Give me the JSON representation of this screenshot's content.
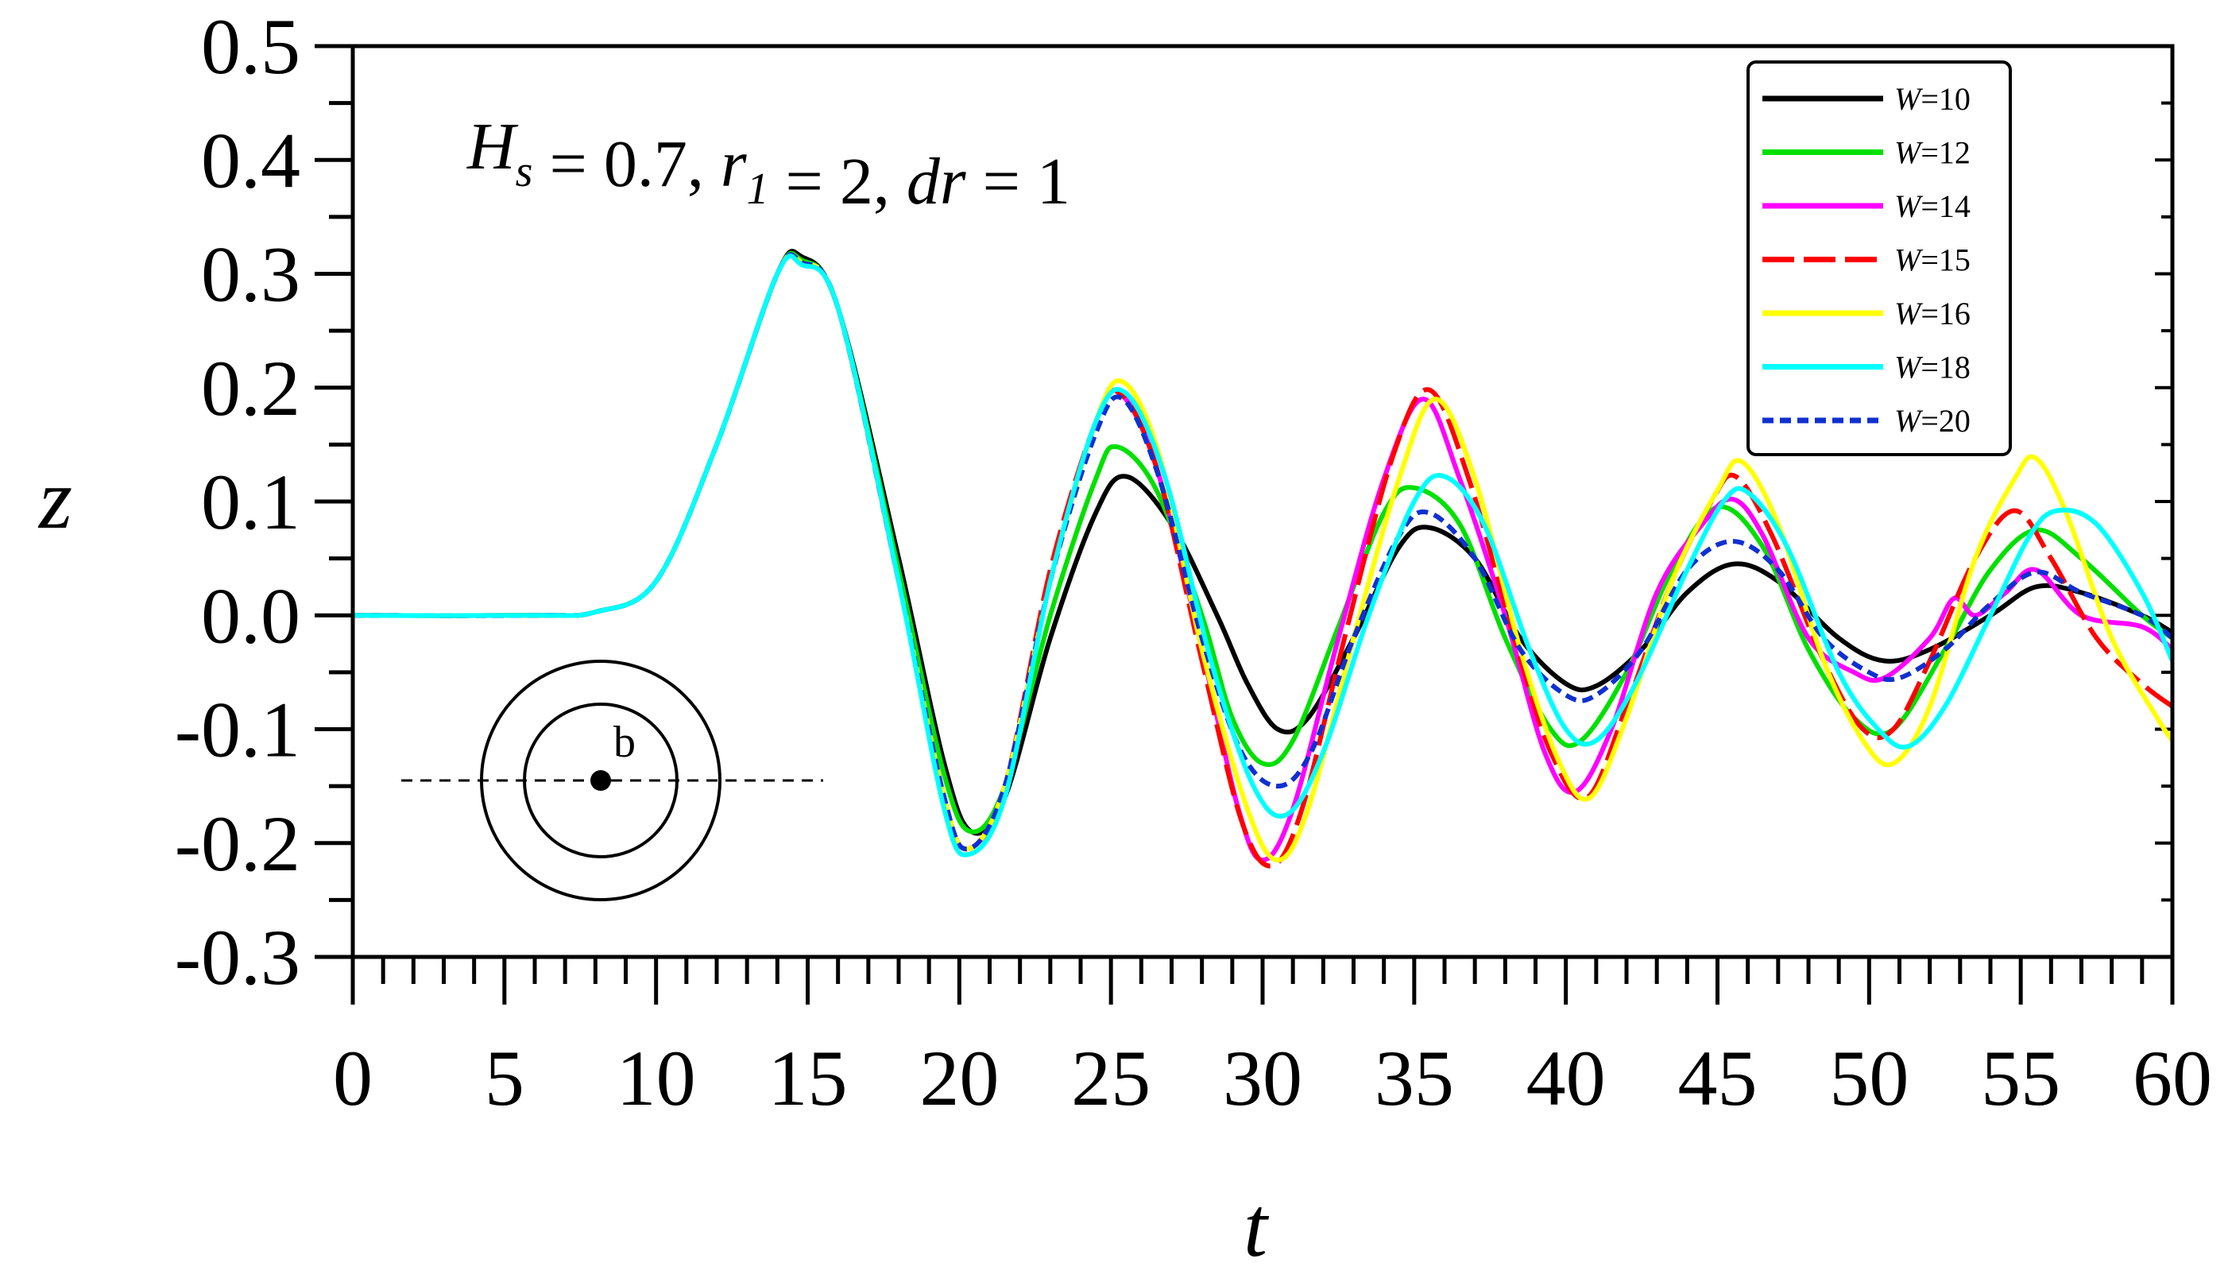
{
  "chart_data": {
    "type": "line",
    "xlabel": "t",
    "ylabel": "z",
    "xlim": [
      0,
      60
    ],
    "ylim": [
      -0.3,
      0.5
    ],
    "xticks": [
      "0",
      "5",
      "10",
      "15",
      "20",
      "25",
      "30",
      "35",
      "40",
      "45",
      "50",
      "55",
      "60"
    ],
    "yticks": [
      "-0.3",
      "-0.2",
      "-0.1",
      "0.0",
      "0.1",
      "0.2",
      "0.3",
      "0.4",
      "0.5"
    ],
    "grid": false,
    "legend_position": "top-right",
    "annotation": {
      "parts": [
        {
          "text": "H",
          "italic": true
        },
        {
          "text": "s",
          "italic": true,
          "sub": true
        },
        {
          "text": " = 0.7, ",
          "italic": false
        },
        {
          "text": "r",
          "italic": true
        },
        {
          "text": "1",
          "italic": true,
          "sub": true
        },
        {
          "text": " = 2, ",
          "italic": false
        },
        {
          "text": "dr",
          "italic": true
        },
        {
          "text": " = 1",
          "italic": false
        }
      ]
    },
    "inset": {
      "label": "b"
    },
    "series": [
      {
        "name": "W=10",
        "legend_italic": "W",
        "legend_rest": "=10",
        "color": "#000000",
        "dash": "solid",
        "points": [
          [
            0,
            0
          ],
          [
            6,
            0
          ],
          [
            8,
            0.003
          ],
          [
            10,
            0.03
          ],
          [
            12,
            0.15
          ],
          [
            14,
            0.3
          ],
          [
            14.8,
            0.315
          ],
          [
            16,
            0.27
          ],
          [
            18,
            0.05
          ],
          [
            19.5,
            -0.13
          ],
          [
            20.4,
            -0.19
          ],
          [
            21.5,
            -0.16
          ],
          [
            23,
            -0.02
          ],
          [
            24.5,
            0.09
          ],
          [
            25.5,
            0.122
          ],
          [
            27,
            0.08
          ],
          [
            28.5,
            0.0
          ],
          [
            29.5,
            -0.06
          ],
          [
            30.5,
            -0.1
          ],
          [
            31.5,
            -0.09
          ],
          [
            33,
            -0.02
          ],
          [
            34.5,
            0.06
          ],
          [
            35.5,
            0.077
          ],
          [
            37,
            0.05
          ],
          [
            38.5,
            -0.02
          ],
          [
            40,
            -0.06
          ],
          [
            41,
            -0.062
          ],
          [
            42.5,
            -0.03
          ],
          [
            44,
            0.02
          ],
          [
            45.5,
            0.045
          ],
          [
            47,
            0.03
          ],
          [
            49,
            -0.02
          ],
          [
            50.5,
            -0.04
          ],
          [
            52,
            -0.03
          ],
          [
            54,
            0.0
          ],
          [
            55.5,
            0.025
          ],
          [
            57,
            0.02
          ],
          [
            59,
            0.0
          ],
          [
            60,
            -0.015
          ]
        ]
      },
      {
        "name": "W=12",
        "legend_italic": "W",
        "legend_rest": "=12",
        "color": "#00e000",
        "dash": "solid",
        "points": [
          [
            0,
            0
          ],
          [
            6,
            0
          ],
          [
            8,
            0.003
          ],
          [
            10,
            0.03
          ],
          [
            12,
            0.15
          ],
          [
            14,
            0.3
          ],
          [
            14.8,
            0.312
          ],
          [
            16,
            0.27
          ],
          [
            18,
            0.04
          ],
          [
            19.5,
            -0.14
          ],
          [
            20.4,
            -0.19
          ],
          [
            21.5,
            -0.15
          ],
          [
            23,
            0.0
          ],
          [
            24.5,
            0.12
          ],
          [
            25.2,
            0.148
          ],
          [
            26.5,
            0.11
          ],
          [
            28,
            0.0
          ],
          [
            29,
            -0.09
          ],
          [
            30,
            -0.13
          ],
          [
            31,
            -0.11
          ],
          [
            32.5,
            -0.01
          ],
          [
            34,
            0.09
          ],
          [
            35,
            0.112
          ],
          [
            36.5,
            0.08
          ],
          [
            38,
            -0.02
          ],
          [
            39.5,
            -0.1
          ],
          [
            40.5,
            -0.11
          ],
          [
            42,
            -0.05
          ],
          [
            43.5,
            0.04
          ],
          [
            45,
            0.095
          ],
          [
            46.5,
            0.06
          ],
          [
            48,
            -0.03
          ],
          [
            49.5,
            -0.09
          ],
          [
            50.8,
            -0.1
          ],
          [
            52.5,
            -0.03
          ],
          [
            54,
            0.04
          ],
          [
            55.5,
            0.075
          ],
          [
            57,
            0.05
          ],
          [
            59,
            0.0
          ],
          [
            60,
            -0.02
          ]
        ]
      },
      {
        "name": "W=14",
        "legend_italic": "W",
        "legend_rest": "=14",
        "color": "#ff00ff",
        "dash": "solid",
        "points": [
          [
            0,
            0
          ],
          [
            6,
            0
          ],
          [
            8,
            0.003
          ],
          [
            10,
            0.03
          ],
          [
            12,
            0.15
          ],
          [
            14,
            0.3
          ],
          [
            14.8,
            0.31
          ],
          [
            16,
            0.27
          ],
          [
            18,
            0.03
          ],
          [
            19.5,
            -0.16
          ],
          [
            20.3,
            -0.205
          ],
          [
            21.5,
            -0.15
          ],
          [
            23,
            0.03
          ],
          [
            24.5,
            0.17
          ],
          [
            25.3,
            0.195
          ],
          [
            26.5,
            0.13
          ],
          [
            28,
            -0.03
          ],
          [
            29.2,
            -0.17
          ],
          [
            30,
            -0.215
          ],
          [
            31,
            -0.17
          ],
          [
            32.5,
            -0.02
          ],
          [
            34,
            0.12
          ],
          [
            35.3,
            0.19
          ],
          [
            36.5,
            0.12
          ],
          [
            38,
            0.0
          ],
          [
            39.3,
            -0.12
          ],
          [
            40.3,
            -0.155
          ],
          [
            41.5,
            -0.1
          ],
          [
            43,
            0.02
          ],
          [
            44.5,
            0.08
          ],
          [
            45.5,
            0.102
          ],
          [
            46.5,
            0.07
          ],
          [
            48,
            -0.02
          ],
          [
            49.5,
            -0.05
          ],
          [
            50.5,
            -0.055
          ],
          [
            52,
            -0.02
          ],
          [
            52.8,
            0.015
          ],
          [
            53.5,
            0.0
          ],
          [
            54.5,
            0.02
          ],
          [
            55.5,
            0.04
          ],
          [
            57,
            0.0
          ],
          [
            59,
            -0.01
          ],
          [
            60,
            -0.03
          ]
        ]
      },
      {
        "name": "W=15",
        "legend_italic": "W",
        "legend_rest": "=15",
        "color": "#ff0000",
        "dash": "longdash",
        "points": [
          [
            0,
            0
          ],
          [
            6,
            0
          ],
          [
            8,
            0.003
          ],
          [
            10,
            0.03
          ],
          [
            12,
            0.15
          ],
          [
            14,
            0.3
          ],
          [
            14.8,
            0.31
          ],
          [
            16,
            0.27
          ],
          [
            18,
            0.03
          ],
          [
            19.5,
            -0.16
          ],
          [
            20.3,
            -0.205
          ],
          [
            21.5,
            -0.15
          ],
          [
            23,
            0.04
          ],
          [
            24.5,
            0.17
          ],
          [
            25.3,
            0.195
          ],
          [
            26.5,
            0.13
          ],
          [
            28,
            -0.04
          ],
          [
            29.3,
            -0.18
          ],
          [
            30.3,
            -0.22
          ],
          [
            31.3,
            -0.17
          ],
          [
            32.7,
            -0.02
          ],
          [
            34.3,
            0.14
          ],
          [
            35.5,
            0.198
          ],
          [
            36.8,
            0.12
          ],
          [
            38.3,
            -0.02
          ],
          [
            39.5,
            -0.12
          ],
          [
            40.7,
            -0.16
          ],
          [
            42,
            -0.08
          ],
          [
            43.5,
            0.03
          ],
          [
            44.8,
            0.1
          ],
          [
            45.6,
            0.122
          ],
          [
            46.8,
            0.07
          ],
          [
            48.5,
            -0.04
          ],
          [
            49.8,
            -0.1
          ],
          [
            50.8,
            -0.1
          ],
          [
            52,
            -0.04
          ],
          [
            53.5,
            0.05
          ],
          [
            54.8,
            0.092
          ],
          [
            56,
            0.05
          ],
          [
            57.5,
            -0.02
          ],
          [
            59,
            -0.06
          ],
          [
            60,
            -0.08
          ]
        ]
      },
      {
        "name": "W=16",
        "legend_italic": "W",
        "legend_rest": "=16",
        "color": "#ffff00",
        "dash": "solid",
        "points": [
          [
            0,
            0
          ],
          [
            6,
            0
          ],
          [
            8,
            0.003
          ],
          [
            10,
            0.03
          ],
          [
            12,
            0.15
          ],
          [
            14,
            0.3
          ],
          [
            14.8,
            0.31
          ],
          [
            16,
            0.27
          ],
          [
            18,
            0.03
          ],
          [
            19.5,
            -0.16
          ],
          [
            20.3,
            -0.205
          ],
          [
            21.5,
            -0.15
          ],
          [
            23,
            0.03
          ],
          [
            24.5,
            0.17
          ],
          [
            25.4,
            0.205
          ],
          [
            26.6,
            0.14
          ],
          [
            28,
            -0.03
          ],
          [
            29.5,
            -0.17
          ],
          [
            30.5,
            -0.215
          ],
          [
            31.5,
            -0.17
          ],
          [
            33,
            -0.02
          ],
          [
            34.5,
            0.12
          ],
          [
            35.7,
            0.19
          ],
          [
            37,
            0.12
          ],
          [
            38.5,
            -0.03
          ],
          [
            39.8,
            -0.13
          ],
          [
            40.8,
            -0.16
          ],
          [
            42,
            -0.09
          ],
          [
            43.5,
            0.03
          ],
          [
            45,
            0.11
          ],
          [
            45.8,
            0.135
          ],
          [
            47,
            0.08
          ],
          [
            48.5,
            -0.04
          ],
          [
            49.8,
            -0.11
          ],
          [
            50.8,
            -0.13
          ],
          [
            52,
            -0.08
          ],
          [
            53.5,
            0.05
          ],
          [
            54.8,
            0.12
          ],
          [
            55.5,
            0.138
          ],
          [
            56.5,
            0.09
          ],
          [
            58,
            -0.02
          ],
          [
            59.5,
            -0.09
          ],
          [
            60,
            -0.11
          ]
        ]
      },
      {
        "name": "W=18",
        "legend_italic": "W",
        "legend_rest": "=18",
        "color": "#00ffff",
        "dash": "solid",
        "points": [
          [
            0,
            0
          ],
          [
            6,
            0
          ],
          [
            8,
            0.003
          ],
          [
            10,
            0.03
          ],
          [
            12,
            0.15
          ],
          [
            14,
            0.3
          ],
          [
            14.8,
            0.308
          ],
          [
            16,
            0.27
          ],
          [
            18,
            0.03
          ],
          [
            19.5,
            -0.17
          ],
          [
            20.3,
            -0.21
          ],
          [
            21.5,
            -0.16
          ],
          [
            23,
            0.03
          ],
          [
            24.5,
            0.17
          ],
          [
            25.5,
            0.195
          ],
          [
            26.8,
            0.12
          ],
          [
            28.3,
            -0.04
          ],
          [
            29.7,
            -0.15
          ],
          [
            30.8,
            -0.175
          ],
          [
            32,
            -0.12
          ],
          [
            33.5,
            0.0
          ],
          [
            35,
            0.1
          ],
          [
            36,
            0.122
          ],
          [
            37.3,
            0.08
          ],
          [
            38.8,
            -0.03
          ],
          [
            40,
            -0.1
          ],
          [
            41,
            -0.11
          ],
          [
            42.3,
            -0.06
          ],
          [
            44,
            0.04
          ],
          [
            45.2,
            0.1
          ],
          [
            46,
            0.108
          ],
          [
            47.3,
            0.06
          ],
          [
            49,
            -0.05
          ],
          [
            50.3,
            -0.1
          ],
          [
            51.3,
            -0.115
          ],
          [
            52.5,
            -0.08
          ],
          [
            54,
            0.0
          ],
          [
            55.3,
            0.07
          ],
          [
            56.2,
            0.092
          ],
          [
            57.5,
            0.08
          ],
          [
            59,
            0.02
          ],
          [
            60,
            -0.04
          ]
        ]
      },
      {
        "name": "W=20",
        "legend_italic": "W",
        "legend_rest": "=20",
        "color": "#1030d0",
        "dash": "shortdash",
        "points": [
          [
            0,
            0
          ],
          [
            6,
            0
          ],
          [
            8,
            0.003
          ],
          [
            10,
            0.03
          ],
          [
            12,
            0.15
          ],
          [
            14,
            0.3
          ],
          [
            14.8,
            0.31
          ],
          [
            16,
            0.27
          ],
          [
            18,
            0.03
          ],
          [
            19.5,
            -0.16
          ],
          [
            20.3,
            -0.205
          ],
          [
            21.5,
            -0.15
          ],
          [
            23,
            0.03
          ],
          [
            24.5,
            0.16
          ],
          [
            25.4,
            0.19
          ],
          [
            26.6,
            0.12
          ],
          [
            28,
            -0.02
          ],
          [
            29.3,
            -0.12
          ],
          [
            30.5,
            -0.15
          ],
          [
            31.6,
            -0.12
          ],
          [
            33,
            -0.02
          ],
          [
            34.5,
            0.07
          ],
          [
            35.5,
            0.09
          ],
          [
            37,
            0.05
          ],
          [
            38.5,
            -0.03
          ],
          [
            40,
            -0.07
          ],
          [
            41,
            -0.07
          ],
          [
            42.5,
            -0.03
          ],
          [
            44,
            0.04
          ],
          [
            45.5,
            0.065
          ],
          [
            47,
            0.04
          ],
          [
            48.5,
            -0.02
          ],
          [
            50,
            -0.05
          ],
          [
            51,
            -0.055
          ],
          [
            52.5,
            -0.03
          ],
          [
            54,
            0.01
          ],
          [
            55.5,
            0.038
          ],
          [
            57,
            0.02
          ],
          [
            59,
            0.0
          ],
          [
            60,
            -0.02
          ]
        ]
      }
    ]
  }
}
